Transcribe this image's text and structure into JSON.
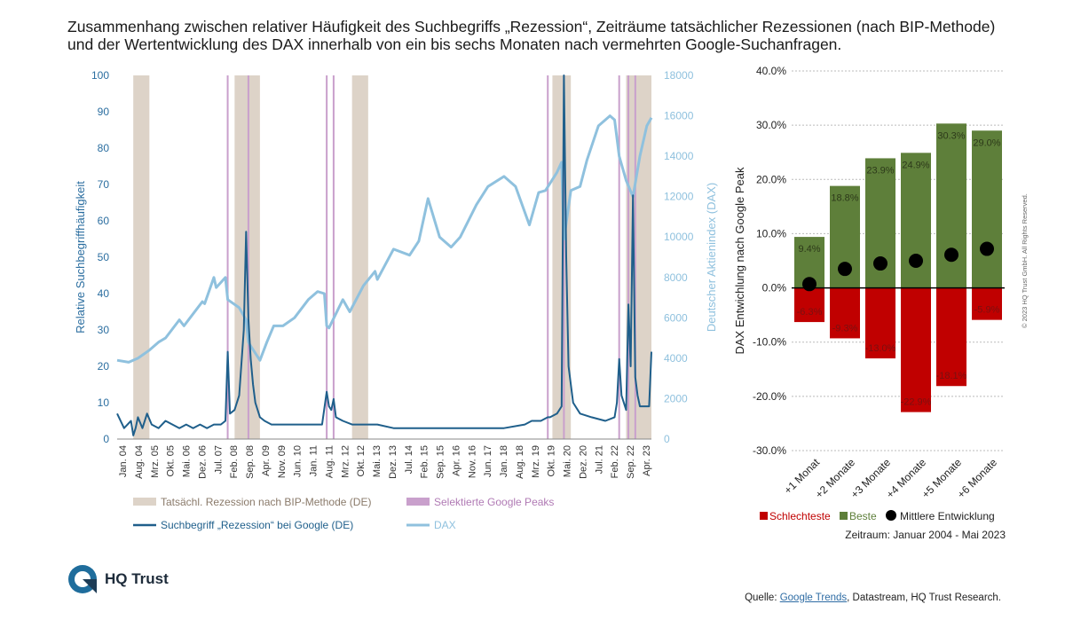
{
  "title_line1": "Zusammenhang zwischen relativer Häufigkeit des Suchbegriffs „Rezession“, Zeiträume tatsächlicher Rezessionen (nach BIP-Methode)",
  "title_line2": "und der Wertentwicklung des DAX innerhalb von ein bis sechs Monaten nach vermehrten Google-Suchanfragen.",
  "logo_text": "HQ Trust",
  "copyright": "© 2023 HQ Trust GmbH. All Rights Reserved.",
  "source": {
    "prefix": "Quelle: ",
    "link": "Google Trends",
    "rest": ", Datastream, HQ Trust Research."
  },
  "colors": {
    "search": "#1f5f8b",
    "dax": "#8fc1de",
    "recession": "#ddd3c8",
    "peak": "#c9a0cc",
    "best": "#5e7f3a",
    "worst": "#c00000",
    "mean": "#000000"
  },
  "chart_data": [
    {
      "type": "line",
      "ylabel": "Relative Suchbegriffhäufigkeit",
      "y2label": "Deutscher Aktienindex (DAX)",
      "ylim": [
        0,
        100
      ],
      "y2lim": [
        0,
        18000
      ],
      "y_ticks": [
        "0",
        "10",
        "20",
        "30",
        "40",
        "50",
        "60",
        "70",
        "80",
        "90",
        "100"
      ],
      "y2_ticks": [
        "0",
        "2000",
        "4000",
        "6000",
        "8000",
        "10000",
        "12000",
        "14000",
        "16000",
        "18000"
      ],
      "x_ticks": [
        "Jan. 04",
        "Aug. 04",
        "Mrz. 05",
        "Okt. 05",
        "Mai. 06",
        "Dez. 06",
        "Jul. 07",
        "Feb. 08",
        "Sep. 08",
        "Apr. 09",
        "Nov. 09",
        "Jun. 10",
        "Jan. 11",
        "Aug. 11",
        "Mrz. 12",
        "Okt. 12",
        "Mai. 13",
        "Dez. 13",
        "Jul. 14",
        "Feb. 15",
        "Sep. 15",
        "Apr. 16",
        "Nov. 16",
        "Jun. 17",
        "Jan. 18",
        "Aug. 18",
        "Mrz. 19",
        "Okt. 19",
        "Mai. 20",
        "Dez. 20",
        "Jul. 21",
        "Feb. 22",
        "Sep. 22",
        "Apr. 23"
      ],
      "x_range": [
        "2004-01",
        "2023-05"
      ],
      "recession_periods": [
        [
          "2004-08",
          "2005-03"
        ],
        [
          "2008-04",
          "2009-03"
        ],
        [
          "2012-07",
          "2013-02"
        ],
        [
          "2019-10",
          "2020-06"
        ],
        [
          "2022-06",
          "2023-05"
        ]
      ],
      "google_peaks": [
        "2008-01",
        "2008-10",
        "2011-08",
        "2011-11",
        "2019-08",
        "2020-03",
        "2022-03",
        "2022-07",
        "2022-10"
      ],
      "legend": {
        "recession": "Tatsächl. Rezession nach BIP-Methode (DE)",
        "peaks": "Selektierte Google Peaks",
        "search": "Suchbegriff „Rezession“ bei Google (DE)",
        "dax": "DAX"
      },
      "series": [
        {
          "name": "Suchbegriff „Rezession“ bei Google (DE)",
          "axis": "left",
          "x": [
            "2004-01",
            "2004-04",
            "2004-07",
            "2004-08",
            "2004-09",
            "2004-10",
            "2004-12",
            "2005-02",
            "2005-04",
            "2005-07",
            "2005-10",
            "2006-01",
            "2006-04",
            "2006-07",
            "2006-10",
            "2007-01",
            "2007-04",
            "2007-07",
            "2007-10",
            "2007-12",
            "2008-01",
            "2008-02",
            "2008-04",
            "2008-06",
            "2008-08",
            "2008-09",
            "2008-10",
            "2008-11",
            "2008-12",
            "2009-01",
            "2009-02",
            "2009-03",
            "2009-05",
            "2009-08",
            "2009-12",
            "2010-06",
            "2011-01",
            "2011-06",
            "2011-08",
            "2011-09",
            "2011-10",
            "2011-11",
            "2011-12",
            "2012-03",
            "2012-07",
            "2012-12",
            "2013-06",
            "2014-01",
            "2015-01",
            "2016-01",
            "2017-01",
            "2018-01",
            "2018-10",
            "2019-01",
            "2019-05",
            "2019-08",
            "2019-09",
            "2019-12",
            "2020-02",
            "2020-03",
            "2020-04",
            "2020-05",
            "2020-07",
            "2020-10",
            "2021-03",
            "2021-09",
            "2022-01",
            "2022-02",
            "2022-03",
            "2022-04",
            "2022-06",
            "2022-07",
            "2022-08",
            "2022-09",
            "2022-10",
            "2022-11",
            "2022-12",
            "2023-02",
            "2023-04",
            "2023-05"
          ],
          "values": [
            7,
            3,
            5,
            1,
            3,
            6,
            3,
            7,
            4,
            3,
            5,
            4,
            3,
            4,
            3,
            4,
            3,
            4,
            4,
            5,
            24,
            7,
            8,
            12,
            30,
            57,
            33,
            22,
            15,
            10,
            8,
            6,
            5,
            4,
            4,
            4,
            4,
            4,
            13,
            9,
            8,
            11,
            6,
            5,
            4,
            4,
            4,
            3,
            3,
            3,
            3,
            3,
            4,
            5,
            5,
            6,
            6,
            7,
            9,
            100,
            50,
            20,
            10,
            7,
            6,
            5,
            6,
            10,
            22,
            12,
            8,
            37,
            20,
            67,
            17,
            12,
            9,
            9,
            9,
            24
          ]
        },
        {
          "name": "DAX",
          "axis": "right",
          "x": [
            "2004-01",
            "2004-06",
            "2004-10",
            "2005-03",
            "2005-07",
            "2005-10",
            "2006-04",
            "2006-06",
            "2006-10",
            "2007-02",
            "2007-03",
            "2007-07",
            "2007-08",
            "2007-12",
            "2008-01",
            "2008-06",
            "2008-09",
            "2008-10",
            "2008-11",
            "2009-03",
            "2009-06",
            "2009-09",
            "2010-01",
            "2010-06",
            "2010-12",
            "2011-04",
            "2011-07",
            "2011-08",
            "2011-09",
            "2012-03",
            "2012-06",
            "2012-12",
            "2013-05",
            "2013-06",
            "2014-01",
            "2014-08",
            "2014-12",
            "2015-04",
            "2015-09",
            "2016-02",
            "2016-06",
            "2017-01",
            "2017-06",
            "2018-01",
            "2018-06",
            "2018-12",
            "2019-04",
            "2019-07",
            "2019-12",
            "2020-02",
            "2020-03",
            "2020-06",
            "2020-10",
            "2021-01",
            "2021-06",
            "2021-11",
            "2022-01",
            "2022-03",
            "2022-06",
            "2022-09",
            "2022-12",
            "2023-03",
            "2023-05"
          ],
          "values": [
            3900,
            3800,
            4000,
            4400,
            4800,
            5000,
            5900,
            5600,
            6200,
            6800,
            6700,
            8000,
            7500,
            8000,
            6900,
            6500,
            5900,
            4800,
            4600,
            3900,
            4800,
            5600,
            5600,
            6000,
            6900,
            7300,
            7200,
            5600,
            5500,
            6900,
            6300,
            7600,
            8300,
            7900,
            9400,
            9100,
            9800,
            11900,
            10000,
            9500,
            10000,
            11600,
            12500,
            13000,
            12500,
            10600,
            12200,
            12300,
            13200,
            13700,
            9900,
            12300,
            12500,
            13800,
            15500,
            16000,
            15800,
            14000,
            12800,
            12000,
            14000,
            15500,
            15900
          ]
        }
      ]
    },
    {
      "type": "bar",
      "ylabel": "DAX Entwichlung nach Google Peak",
      "ylim": [
        -30,
        40
      ],
      "y_ticks": [
        "40.0%",
        "30.0%",
        "20.0%",
        "10.0%",
        "0.0%",
        "-10.0%",
        "-20.0%",
        "-30.0%"
      ],
      "categories": [
        "+1 Monat",
        "+2 Monate",
        "+3 Monate",
        "+4 Monate",
        "+5 Monate",
        "+6 Monate"
      ],
      "series": [
        {
          "name": "Schlechteste",
          "values": [
            -6.3,
            -9.3,
            -13.0,
            -22.9,
            -18.1,
            -5.9
          ],
          "labels": [
            "-6.3%",
            "-9.3%",
            "-13.0%",
            "-22.9%",
            "-18.1%",
            "-5.9%"
          ]
        },
        {
          "name": "Beste",
          "values": [
            9.4,
            18.8,
            23.9,
            24.9,
            30.3,
            29.0
          ],
          "labels": [
            "9.4%",
            "18.8%",
            "23.9%",
            "24.9%",
            "30.3%",
            "29.0%"
          ]
        },
        {
          "name": "Mittlere Entwicklung",
          "values": [
            0.7,
            3.5,
            4.5,
            5.0,
            6.1,
            7.2
          ]
        }
      ],
      "period_label": "Zeitraum: Januar 2004 - Mai 2023"
    }
  ]
}
